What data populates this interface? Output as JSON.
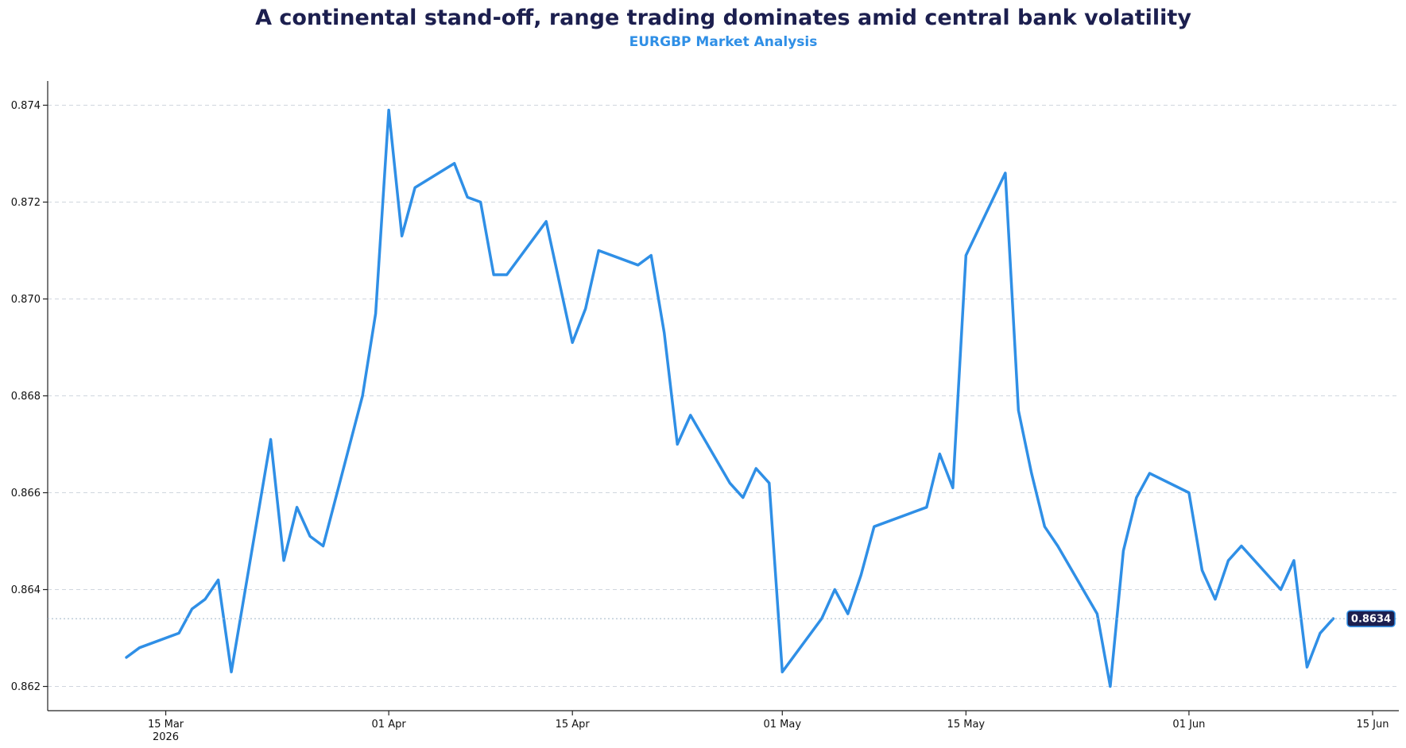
{
  "chart_data": {
    "type": "line",
    "title": "A continental stand-off, range trading dominates amid central bank volatility",
    "subtitle": "EURGBP Market Analysis",
    "xlabel": "",
    "ylabel": "",
    "xlim": [
      "2026-03-06",
      "2026-06-17"
    ],
    "ylim": [
      0.8615,
      0.8745
    ],
    "grid": "horizontal dashed",
    "y_ticks": [
      0.862,
      0.864,
      0.866,
      0.868,
      0.87,
      0.872,
      0.874
    ],
    "y_tick_labels": [
      "0.862",
      "0.864",
      "0.866",
      "0.868",
      "0.870",
      "0.872",
      "0.874"
    ],
    "x_ticks": [
      {
        "date": "2026-03-15",
        "label": "15 Mar",
        "sublabel": "2026"
      },
      {
        "date": "2026-04-01",
        "label": "01 Apr",
        "sublabel": ""
      },
      {
        "date": "2026-04-15",
        "label": "15 Apr",
        "sublabel": ""
      },
      {
        "date": "2026-05-01",
        "label": "01 May",
        "sublabel": ""
      },
      {
        "date": "2026-05-15",
        "label": "15 May",
        "sublabel": ""
      },
      {
        "date": "2026-06-01",
        "label": "01 Jun",
        "sublabel": ""
      },
      {
        "date": "2026-06-15",
        "label": "15 Jun",
        "sublabel": ""
      }
    ],
    "series": [
      {
        "color": "#2f8fe6",
        "points": [
          [
            "2026-03-12",
            0.8626
          ],
          [
            "2026-03-13",
            0.8628
          ],
          [
            "2026-03-16",
            0.8631
          ],
          [
            "2026-03-17",
            0.8636
          ],
          [
            "2026-03-18",
            0.8638
          ],
          [
            "2026-03-19",
            0.8642
          ],
          [
            "2026-03-20",
            0.8623
          ],
          [
            "2026-03-23",
            0.8671
          ],
          [
            "2026-03-24",
            0.8646
          ],
          [
            "2026-03-25",
            0.8657
          ],
          [
            "2026-03-26",
            0.8651
          ],
          [
            "2026-03-27",
            0.8649
          ],
          [
            "2026-03-30",
            0.868
          ],
          [
            "2026-03-31",
            0.8697
          ],
          [
            "2026-04-01",
            0.8739
          ],
          [
            "2026-04-02",
            0.8713
          ],
          [
            "2026-04-03",
            0.8723
          ],
          [
            "2026-04-06",
            0.8728
          ],
          [
            "2026-04-07",
            0.8721
          ],
          [
            "2026-04-08",
            0.872
          ],
          [
            "2026-04-09",
            0.8705
          ],
          [
            "2026-04-10",
            0.8705
          ],
          [
            "2026-04-13",
            0.8716
          ],
          [
            "2026-04-15",
            0.8691
          ],
          [
            "2026-04-16",
            0.8698
          ],
          [
            "2026-04-17",
            0.871
          ],
          [
            "2026-04-20",
            0.8707
          ],
          [
            "2026-04-21",
            0.8709
          ],
          [
            "2026-04-22",
            0.8693
          ],
          [
            "2026-04-23",
            0.867
          ],
          [
            "2026-04-24",
            0.8676
          ],
          [
            "2026-04-27",
            0.8662
          ],
          [
            "2026-04-28",
            0.8659
          ],
          [
            "2026-04-29",
            0.8665
          ],
          [
            "2026-04-30",
            0.8662
          ],
          [
            "2026-05-01",
            0.8623
          ],
          [
            "2026-05-04",
            0.8634
          ],
          [
            "2026-05-05",
            0.864
          ],
          [
            "2026-05-06",
            0.8635
          ],
          [
            "2026-05-07",
            0.8643
          ],
          [
            "2026-05-08",
            0.8653
          ],
          [
            "2026-05-11",
            0.8656
          ],
          [
            "2026-05-12",
            0.8657
          ],
          [
            "2026-05-13",
            0.8668
          ],
          [
            "2026-05-14",
            0.8661
          ],
          [
            "2026-05-15",
            0.8709
          ],
          [
            "2026-05-18",
            0.8726
          ],
          [
            "2026-05-19",
            0.8677
          ],
          [
            "2026-05-20",
            0.8664
          ],
          [
            "2026-05-21",
            0.8653
          ],
          [
            "2026-05-22",
            0.8649
          ],
          [
            "2026-05-25",
            0.8635
          ],
          [
            "2026-05-26",
            0.862
          ],
          [
            "2026-05-27",
            0.8648
          ],
          [
            "2026-05-28",
            0.8659
          ],
          [
            "2026-05-29",
            0.8664
          ],
          [
            "2026-06-01",
            0.866
          ],
          [
            "2026-06-02",
            0.8644
          ],
          [
            "2026-06-03",
            0.8638
          ],
          [
            "2026-06-04",
            0.8646
          ],
          [
            "2026-06-05",
            0.8649
          ],
          [
            "2026-06-08",
            0.864
          ],
          [
            "2026-06-09",
            0.8646
          ],
          [
            "2026-06-10",
            0.8624
          ],
          [
            "2026-06-11",
            0.8631
          ],
          [
            "2026-06-12",
            0.8634
          ]
        ]
      }
    ],
    "last_value": 0.8634,
    "last_value_label": "0.8634"
  }
}
